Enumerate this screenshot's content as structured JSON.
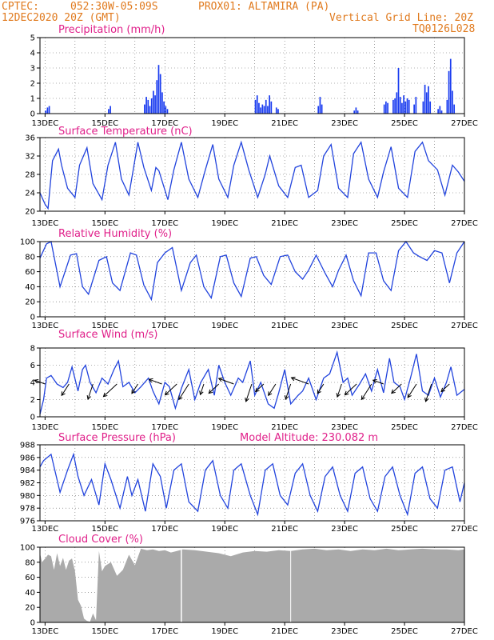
{
  "header": {
    "source": "CPTEC:",
    "coords": "052:30W-05:09S",
    "station": "PROX01: ALTAMIRA (PA)",
    "datetime": "12DEC2020 20Z (GMT)",
    "grid_note": "Vertical Grid Line: 20Z",
    "run_id": "TQ0126L028"
  },
  "x_day_labels": [
    "13DEC",
    "15DEC",
    "17DEC",
    "19DEC",
    "21DEC",
    "23DEC",
    "25DEC",
    "27DEC"
  ],
  "colors": {
    "series": "#2244dd",
    "bar": "#1a3cf0",
    "cloud": "#aaaaaa",
    "title": "#e0208a",
    "header": "#e07a1e"
  },
  "chart_data": [
    {
      "id": "precip",
      "type": "bar",
      "title": "Precipitation (mm/h)",
      "ylim": [
        0,
        5
      ],
      "yticks": [
        0,
        1,
        2,
        3,
        4,
        5
      ],
      "xlim_days": [
        12.83,
        27.0
      ],
      "events": [
        {
          "day": 13.0,
          "values": [
            0.2,
            0.4,
            0.5
          ]
        },
        {
          "day": 15.1,
          "values": [
            0.3,
            0.5
          ]
        },
        {
          "day": 16.3,
          "values": [
            0.6,
            1.1,
            0.9,
            0.5,
            1.0,
            1.5,
            1.2,
            2.2,
            3.2,
            2.6,
            1.4,
            0.8,
            0.5,
            0.3
          ]
        },
        {
          "day": 20.0,
          "values": [
            0.9,
            1.2,
            0.7,
            0.4,
            0.6,
            0.5,
            0.9,
            0.5,
            1.2,
            0.8
          ]
        },
        {
          "day": 20.7,
          "values": [
            0.4,
            0.3
          ]
        },
        {
          "day": 22.1,
          "values": [
            0.5,
            1.1,
            0.6
          ]
        },
        {
          "day": 23.3,
          "values": [
            0.2,
            0.4,
            0.2
          ]
        },
        {
          "day": 24.3,
          "values": [
            0.6,
            0.8,
            0.7
          ]
        },
        {
          "day": 24.6,
          "values": [
            0.9,
            1.0,
            1.4,
            3.0,
            1.1,
            0.7,
            1.2,
            0.8,
            1.0,
            0.9
          ]
        },
        {
          "day": 25.3,
          "values": [
            0.6,
            1.1
          ]
        },
        {
          "day": 25.6,
          "values": [
            0.8,
            1.9,
            1.4,
            1.8,
            0.8
          ]
        },
        {
          "day": 26.1,
          "values": [
            0.3,
            0.5,
            0.2
          ]
        },
        {
          "day": 26.4,
          "values": [
            0.9,
            2.8,
            3.6,
            1.5,
            0.6
          ]
        }
      ]
    },
    {
      "id": "temp",
      "type": "line",
      "title": "Surface Temperature (nC)",
      "ylim": [
        20,
        36
      ],
      "yticks": [
        20,
        24,
        28,
        32,
        36
      ],
      "xlim_days": [
        12.83,
        27.0
      ],
      "x": [
        12.83,
        13.0,
        13.1,
        13.25,
        13.45,
        13.55,
        13.75,
        14.0,
        14.15,
        14.4,
        14.6,
        14.9,
        15.1,
        15.35,
        15.55,
        15.8,
        16.1,
        16.3,
        16.55,
        16.7,
        16.8,
        17.1,
        17.3,
        17.55,
        17.8,
        18.1,
        18.35,
        18.6,
        18.8,
        19.1,
        19.3,
        19.55,
        19.8,
        20.1,
        20.35,
        20.5,
        20.8,
        21.1,
        21.35,
        21.55,
        21.8,
        22.1,
        22.3,
        22.55,
        22.8,
        23.1,
        23.3,
        23.55,
        23.8,
        24.1,
        24.3,
        24.55,
        24.8,
        25.1,
        25.35,
        25.6,
        25.8,
        26.1,
        26.35,
        26.6,
        26.8,
        27.0
      ],
      "y": [
        24.0,
        21.5,
        20.6,
        31.0,
        33.5,
        30.0,
        25.0,
        23.0,
        30.0,
        33.8,
        26.0,
        22.5,
        30.0,
        35.0,
        27.0,
        23.5,
        35.0,
        29.5,
        24.5,
        29.5,
        28.8,
        22.5,
        29.0,
        35.0,
        27.0,
        23.0,
        29.0,
        34.5,
        27.0,
        23.0,
        30.0,
        35.0,
        29.0,
        23.0,
        28.0,
        32.0,
        25.5,
        23.0,
        29.5,
        30.0,
        23.0,
        24.5,
        32.0,
        34.5,
        25.0,
        23.0,
        32.5,
        35.0,
        27.0,
        23.0,
        28.5,
        34.0,
        25.0,
        23.0,
        33.0,
        35.0,
        31.0,
        29.0,
        23.5,
        30.0,
        28.5,
        26.5
      ]
    },
    {
      "id": "rh",
      "type": "line",
      "title": "Relative Humidity (%)",
      "ylim": [
        0,
        100
      ],
      "yticks": [
        0,
        20,
        40,
        60,
        80,
        100
      ],
      "xlim_days": [
        12.83,
        27.0
      ],
      "x": [
        12.83,
        13.05,
        13.2,
        13.5,
        13.85,
        14.05,
        14.25,
        14.45,
        14.8,
        15.05,
        15.25,
        15.5,
        15.85,
        16.05,
        16.3,
        16.55,
        16.75,
        17.0,
        17.25,
        17.55,
        17.85,
        18.05,
        18.3,
        18.55,
        18.85,
        19.05,
        19.3,
        19.55,
        19.85,
        20.05,
        20.3,
        20.55,
        20.85,
        21.1,
        21.35,
        21.6,
        21.8,
        22.05,
        22.35,
        22.6,
        22.8,
        23.05,
        23.3,
        23.55,
        23.8,
        24.05,
        24.3,
        24.55,
        24.8,
        25.05,
        25.3,
        25.5,
        25.75,
        26.0,
        26.25,
        26.5,
        26.75,
        27.0
      ],
      "y": [
        78,
        97,
        100,
        40,
        82,
        84,
        40,
        30,
        75,
        80,
        45,
        35,
        85,
        82,
        42,
        23,
        72,
        85,
        92,
        35,
        72,
        82,
        40,
        25,
        80,
        82,
        45,
        27,
        78,
        80,
        55,
        43,
        80,
        82,
        60,
        50,
        62,
        82,
        58,
        40,
        62,
        82,
        48,
        28,
        85,
        85,
        48,
        35,
        88,
        100,
        85,
        80,
        75,
        88,
        85,
        45,
        85,
        100
      ]
    },
    {
      "id": "wind",
      "type": "line",
      "title": "Surface Wind (m/s)",
      "ylim": [
        0,
        8
      ],
      "yticks": [
        0,
        2,
        4,
        6,
        8
      ],
      "xlim_days": [
        12.83,
        27.0
      ],
      "x": [
        12.83,
        12.95,
        13.05,
        13.2,
        13.4,
        13.6,
        13.75,
        13.9,
        14.1,
        14.25,
        14.35,
        14.5,
        14.7,
        14.9,
        15.1,
        15.3,
        15.45,
        15.6,
        15.8,
        16.0,
        16.2,
        16.45,
        16.6,
        16.8,
        17.0,
        17.15,
        17.35,
        17.55,
        17.8,
        18.0,
        18.2,
        18.45,
        18.65,
        18.8,
        19.0,
        19.2,
        19.45,
        19.6,
        19.85,
        20.0,
        20.2,
        20.45,
        20.65,
        20.8,
        21.0,
        21.2,
        21.45,
        21.6,
        21.8,
        22.05,
        22.3,
        22.5,
        22.75,
        22.95,
        23.1,
        23.25,
        23.5,
        23.7,
        23.9,
        24.1,
        24.3,
        24.5,
        24.65,
        24.85,
        25.0,
        25.2,
        25.4,
        25.6,
        25.8,
        26.0,
        26.2,
        26.4,
        26.55,
        26.75,
        27.0
      ],
      "y": [
        0.3,
        2.0,
        4.5,
        4.8,
        3.8,
        3.4,
        4.0,
        5.8,
        3.0,
        5.5,
        6.0,
        4.0,
        2.8,
        4.5,
        3.8,
        5.5,
        6.5,
        3.5,
        4.0,
        2.8,
        3.5,
        4.5,
        3.0,
        1.5,
        4.0,
        3.5,
        1.0,
        3.3,
        5.5,
        2.0,
        4.0,
        5.5,
        2.5,
        6.0,
        4.0,
        2.5,
        4.5,
        4.0,
        6.5,
        2.5,
        4.0,
        1.5,
        1.0,
        2.8,
        5.5,
        1.5,
        2.5,
        3.0,
        4.5,
        2.0,
        4.5,
        5.0,
        7.5,
        4.0,
        4.5,
        2.5,
        3.8,
        5.0,
        3.0,
        5.5,
        2.8,
        6.8,
        4.0,
        3.5,
        2.0,
        4.5,
        7.3,
        3.0,
        2.5,
        4.5,
        2.3,
        4.0,
        5.8,
        2.5,
        3.2
      ]
    },
    {
      "id": "pressure",
      "type": "line",
      "title": "Surface Pressure (hPa)",
      "annotation": "Model Altitude: 230.082 m",
      "ylim": [
        976,
        988
      ],
      "yticks": [
        976,
        978,
        980,
        982,
        984,
        986,
        988
      ],
      "xlim_days": [
        12.83,
        27.0
      ],
      "x": [
        12.83,
        12.95,
        13.2,
        13.5,
        13.75,
        13.95,
        14.1,
        14.3,
        14.55,
        14.8,
        15.0,
        15.2,
        15.5,
        15.75,
        15.9,
        16.1,
        16.35,
        16.6,
        16.85,
        17.05,
        17.3,
        17.55,
        17.8,
        18.1,
        18.35,
        18.6,
        18.85,
        19.1,
        19.3,
        19.55,
        19.85,
        20.1,
        20.35,
        20.6,
        20.85,
        21.1,
        21.35,
        21.6,
        21.85,
        22.1,
        22.35,
        22.6,
        22.85,
        23.1,
        23.35,
        23.6,
        23.85,
        24.1,
        24.35,
        24.6,
        24.85,
        25.1,
        25.35,
        25.6,
        25.85,
        26.1,
        26.35,
        26.6,
        26.85,
        27.0
      ],
      "y": [
        984.5,
        985.5,
        986.5,
        980.5,
        984.0,
        986.5,
        983.0,
        980.0,
        982.5,
        978.5,
        985.0,
        982.5,
        978.0,
        983.0,
        980.0,
        982.5,
        977.5,
        985.0,
        983.0,
        978.0,
        984.0,
        985.0,
        979.0,
        977.5,
        984.0,
        985.5,
        980.0,
        978.0,
        984.0,
        985.0,
        980.0,
        977.0,
        984.0,
        985.0,
        980.0,
        978.5,
        983.5,
        985.0,
        980.0,
        977.5,
        983.0,
        984.5,
        980.0,
        977.5,
        983.5,
        984.5,
        979.5,
        977.5,
        983.0,
        984.5,
        980.0,
        977.0,
        983.5,
        984.5,
        979.5,
        978.0,
        984.0,
        984.5,
        979.0,
        982.0
      ]
    },
    {
      "id": "cloud",
      "type": "area",
      "title": "Cloud Cover (%)",
      "ylim": [
        0,
        100
      ],
      "yticks": [
        0,
        20,
        40,
        60,
        80,
        100
      ],
      "xlim_days": [
        12.83,
        27.0
      ],
      "x": [
        12.83,
        12.9,
        13.0,
        13.1,
        13.2,
        13.3,
        13.4,
        13.5,
        13.6,
        13.7,
        13.8,
        13.9,
        14.0,
        14.1,
        14.2,
        14.3,
        14.4,
        14.5,
        14.6,
        14.7,
        14.8,
        14.9,
        15.0,
        15.2,
        15.4,
        15.6,
        15.8,
        16.0,
        16.2,
        16.4,
        16.6,
        16.8,
        17.0,
        17.2,
        17.4,
        17.6,
        18.0,
        18.4,
        18.8,
        19.2,
        19.6,
        20.0,
        20.4,
        20.8,
        21.2,
        21.6,
        22.0,
        22.4,
        22.8,
        23.2,
        23.6,
        24.0,
        24.4,
        24.8,
        25.2,
        25.6,
        26.0,
        26.4,
        26.8,
        27.0
      ],
      "y": [
        92,
        80,
        85,
        90,
        88,
        70,
        92,
        75,
        86,
        70,
        82,
        85,
        68,
        30,
        22,
        5,
        2,
        1,
        12,
        3,
        95,
        68,
        75,
        80,
        62,
        70,
        90,
        76,
        98,
        96,
        97,
        95,
        96,
        93,
        95,
        97,
        96,
        94,
        92,
        88,
        93,
        95,
        94,
        96,
        95,
        97,
        98,
        96,
        97,
        95,
        97,
        96,
        98,
        96,
        97,
        98,
        97,
        97,
        96,
        97
      ]
    }
  ]
}
